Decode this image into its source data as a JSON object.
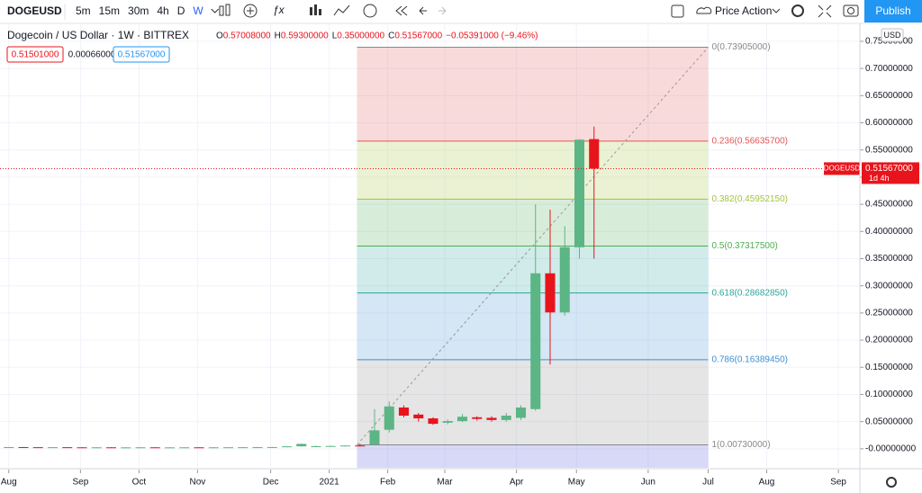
{
  "toolbar": {
    "symbol": "DOGEUSD",
    "intervals": [
      "5m",
      "15m",
      "30m",
      "4h",
      "D",
      "W"
    ],
    "active_interval": 5,
    "template": "Price Action",
    "publish": "Publish"
  },
  "legend": {
    "title": "Dogecoin / US Dollar · 1W · BITTREX",
    "ohlc": [
      {
        "key": "O",
        "value": "0.57008000"
      },
      {
        "key": "H",
        "value": "0.59300000"
      },
      {
        "key": "L",
        "value": "0.35000000"
      },
      {
        "key": "C",
        "value": "0.51567000"
      }
    ],
    "change": "−0.05391000 (−9.46%)",
    "bid": "0.51501000",
    "spread": "0.00066000",
    "ask": "0.51567000",
    "currency": "USD"
  },
  "chart_data": {
    "type": "candlestick",
    "x": [
      0.6,
      1.6,
      2.6,
      3.6,
      4.6,
      5.6,
      6.6,
      7.6,
      8.6,
      9.6,
      10.6,
      11.6,
      12.6,
      13.6,
      14.6,
      15.6,
      16.6,
      17.6,
      18.6,
      19.6,
      20.6,
      21.6,
      22.6,
      23.6,
      24.6,
      25.6,
      26.6,
      27.6,
      28.6,
      29.6,
      30.6,
      31.6,
      32.6,
      33.6,
      34.6,
      35.6,
      36.6,
      37.6,
      38.6,
      39.6,
      40.6
    ],
    "open": [
      0.0028,
      0.0031,
      0.0029,
      0.0027,
      0.0029,
      0.0027,
      0.0026,
      0.0027,
      0.0026,
      0.0026,
      0.0027,
      0.0026,
      0.0026,
      0.0027,
      0.0026,
      0.0027,
      0.0028,
      0.0029,
      0.003,
      0.0032,
      0.0045,
      0.0046,
      0.0047,
      0.0052,
      0.006,
      0.008,
      0.035,
      0.076,
      0.063,
      0.056,
      0.048,
      0.051,
      0.058,
      0.057,
      0.053,
      0.057,
      0.073,
      0.323,
      0.251,
      0.371,
      0.57
    ],
    "high": [
      0.0033,
      0.0034,
      0.0032,
      0.0031,
      0.0032,
      0.003,
      0.0029,
      0.003,
      0.0029,
      0.0029,
      0.003,
      0.0029,
      0.0029,
      0.003,
      0.0029,
      0.003,
      0.0031,
      0.0033,
      0.0034,
      0.0048,
      0.0095,
      0.006,
      0.0058,
      0.0065,
      0.009,
      0.073,
      0.087,
      0.08,
      0.066,
      0.058,
      0.054,
      0.064,
      0.06,
      0.06,
      0.066,
      0.08,
      0.45,
      0.44,
      0.41,
      0.57,
      0.593
    ],
    "low": [
      0.0025,
      0.0027,
      0.0025,
      0.0024,
      0.0025,
      0.0024,
      0.0023,
      0.0024,
      0.0023,
      0.0023,
      0.0024,
      0.0023,
      0.0023,
      0.0024,
      0.0023,
      0.0024,
      0.0025,
      0.0026,
      0.0027,
      0.0029,
      0.004,
      0.0041,
      0.0042,
      0.0045,
      0.0048,
      0.0067,
      0.03,
      0.058,
      0.05,
      0.044,
      0.045,
      0.049,
      0.052,
      0.05,
      0.05,
      0.053,
      0.07,
      0.155,
      0.245,
      0.35,
      0.35
    ],
    "close": [
      0.0031,
      0.0029,
      0.0027,
      0.0029,
      0.0027,
      0.0026,
      0.0027,
      0.0026,
      0.0026,
      0.0027,
      0.0026,
      0.0026,
      0.0027,
      0.0026,
      0.0027,
      0.0028,
      0.0029,
      0.003,
      0.0032,
      0.0045,
      0.009,
      0.0047,
      0.0052,
      0.006,
      0.0053,
      0.034,
      0.078,
      0.061,
      0.056,
      0.046,
      0.051,
      0.059,
      0.055,
      0.053,
      0.061,
      0.076,
      0.323,
      0.251,
      0.371,
      0.569,
      0.51567
    ],
    "up_color": "#5bb585",
    "down_color": "#e8141c",
    "xlim": [
      0,
      58.77
    ],
    "xticks": [
      {
        "value": 0.6,
        "label": "Aug"
      },
      {
        "value": 5.5,
        "label": "Sep"
      },
      {
        "value": 9.5,
        "label": "Oct"
      },
      {
        "value": 13.5,
        "label": "Nov"
      },
      {
        "value": 18.5,
        "label": "Dec"
      },
      {
        "value": 22.5,
        "label": "2021"
      },
      {
        "value": 26.5,
        "label": "Feb"
      },
      {
        "value": 30.4,
        "label": "Mar"
      },
      {
        "value": 35.3,
        "label": "Apr"
      },
      {
        "value": 39.4,
        "label": "May"
      },
      {
        "value": 44.3,
        "label": "Jun"
      },
      {
        "value": 48.4,
        "label": "Jul"
      },
      {
        "value": 52.4,
        "label": "Aug"
      },
      {
        "value": 57.3,
        "label": "Sep"
      }
    ],
    "ylim": [
      -0.035,
      0.783
    ],
    "yticks": [
      {
        "value": 0.75,
        "label": "0.75000000"
      },
      {
        "value": 0.7,
        "label": "0.70000000"
      },
      {
        "value": 0.65,
        "label": "0.65000000"
      },
      {
        "value": 0.6,
        "label": "0.60000000"
      },
      {
        "value": 0.55,
        "label": "0.55000000"
      },
      {
        "value": 0.5,
        "label": "0.50000000"
      },
      {
        "value": 0.45,
        "label": "0.45000000"
      },
      {
        "value": 0.4,
        "label": "0.40000000"
      },
      {
        "value": 0.35,
        "label": "0.35000000"
      },
      {
        "value": 0.3,
        "label": "0.30000000"
      },
      {
        "value": 0.25,
        "label": "0.25000000"
      },
      {
        "value": 0.2,
        "label": "0.20000000"
      },
      {
        "value": 0.15,
        "label": "0.15000000"
      },
      {
        "value": 0.1,
        "label": "0.10000000"
      },
      {
        "value": 0.05,
        "label": "0.05000000"
      },
      {
        "value": 0,
        "label": "-0.00000000"
      }
    ],
    "grid": true,
    "fib": {
      "x_start": 24.4,
      "x_end": 48.4,
      "below_color": "#8f8fe8",
      "levels": [
        {
          "price": 0.73905,
          "label": "0(0.73905000)",
          "color": "#888888"
        },
        {
          "price": 0.566357,
          "label": "0.236(0.56635700)",
          "color": "#e25555"
        },
        {
          "price": 0.4595215,
          "label": "0.382(0.45952150)",
          "color": "#a3c43a"
        },
        {
          "price": 0.373175,
          "label": "0.5(0.37317500)",
          "color": "#4caf50"
        },
        {
          "price": 0.2868285,
          "label": "0.618(0.28682850)",
          "color": "#2aa69a"
        },
        {
          "price": 0.1638945,
          "label": "0.786(0.16389450)",
          "color": "#3f8fd0"
        },
        {
          "price": 0.0073,
          "label": "1(0.00730000)",
          "color": "#888888"
        }
      ]
    },
    "last_price": {
      "value": 0.51567,
      "label": "0.51567000",
      "symbol": "DOGEUSD",
      "countdown": "1d 4h",
      "color": "#e8141c"
    }
  }
}
